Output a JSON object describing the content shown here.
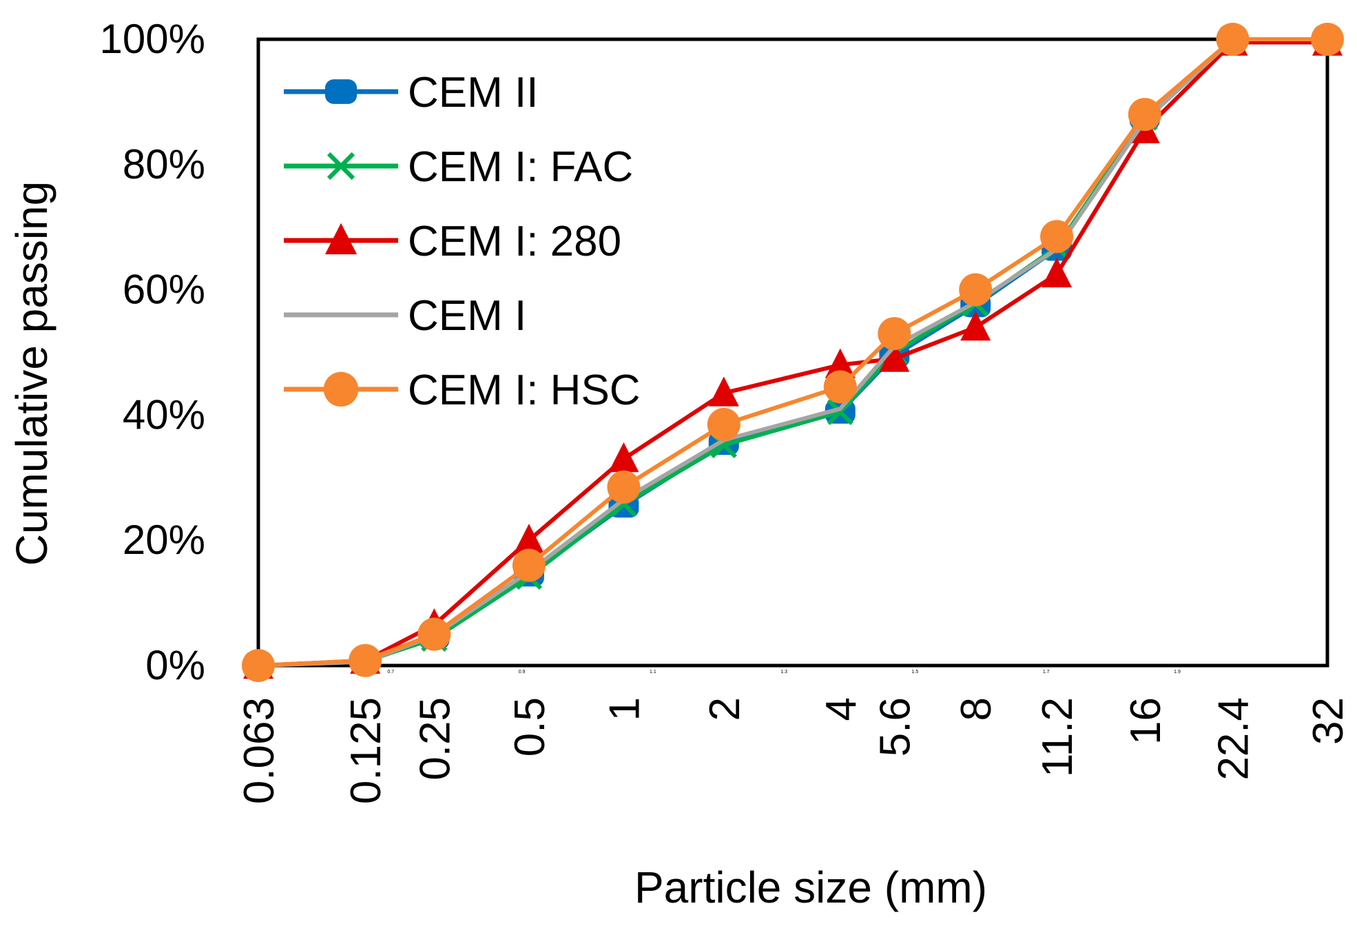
{
  "chart_data": {
    "type": "line",
    "title": "",
    "xlabel": "Particle size (mm)",
    "ylabel": "Cumulative passing",
    "categories": [
      "0.063",
      "0.125",
      "0.25",
      "0.5",
      "1",
      "2",
      "4",
      "5.6",
      "8",
      "11.2",
      "16",
      "22.4",
      "32"
    ],
    "x_positions": [
      0.5,
      0.579,
      0.63,
      0.7,
      0.77,
      0.844,
      0.93,
      0.97,
      1.03,
      1.09,
      1.155,
      1.22,
      1.29
    ],
    "xlim": [
      0.5,
      1.29
    ],
    "minor_x_ticks": [
      "0.5",
      "0.7",
      "0.9",
      "1.1",
      "1.3",
      "1.5",
      "1.7",
      "1.9"
    ],
    "ylim": [
      0,
      1
    ],
    "yticks": [
      0,
      0.2,
      0.4,
      0.6,
      0.8,
      1.0
    ],
    "ytick_labels": [
      "0%",
      "20%",
      "40%",
      "60%",
      "80%",
      "100%"
    ],
    "grid": false,
    "legend_position": "top-left",
    "series": [
      {
        "name": "CEM II",
        "color": "#0070C0",
        "marker": "square",
        "values": [
          0.0,
          0.006,
          0.045,
          0.145,
          0.255,
          0.355,
          0.405,
          0.495,
          0.575,
          0.665,
          0.875,
          1.0,
          1.0
        ]
      },
      {
        "name": "CEM I: FAC",
        "color": "#00B050",
        "marker": "x",
        "values": [
          0.0,
          0.007,
          0.043,
          0.142,
          0.258,
          0.352,
          0.405,
          0.5,
          0.578,
          0.668,
          0.875,
          1.0,
          1.0
        ]
      },
      {
        "name": "CEM I: 280",
        "color": "#E00000",
        "marker": "triangle",
        "values": [
          0.0,
          0.008,
          0.065,
          0.2,
          0.33,
          0.435,
          0.48,
          0.49,
          0.54,
          0.625,
          0.855,
          0.995,
          0.995
        ]
      },
      {
        "name": "CEM I",
        "color": "#A5A5A5",
        "marker": "none",
        "values": [
          0.0,
          0.006,
          0.048,
          0.15,
          0.265,
          0.36,
          0.41,
          0.51,
          0.58,
          0.665,
          0.87,
          1.0,
          1.0
        ]
      },
      {
        "name": "CEM I: HSC",
        "color": "#F7862F",
        "marker": "circle",
        "values": [
          0.0,
          0.008,
          0.05,
          0.16,
          0.285,
          0.385,
          0.445,
          0.53,
          0.6,
          0.685,
          0.88,
          1.0,
          1.0
        ]
      }
    ]
  }
}
